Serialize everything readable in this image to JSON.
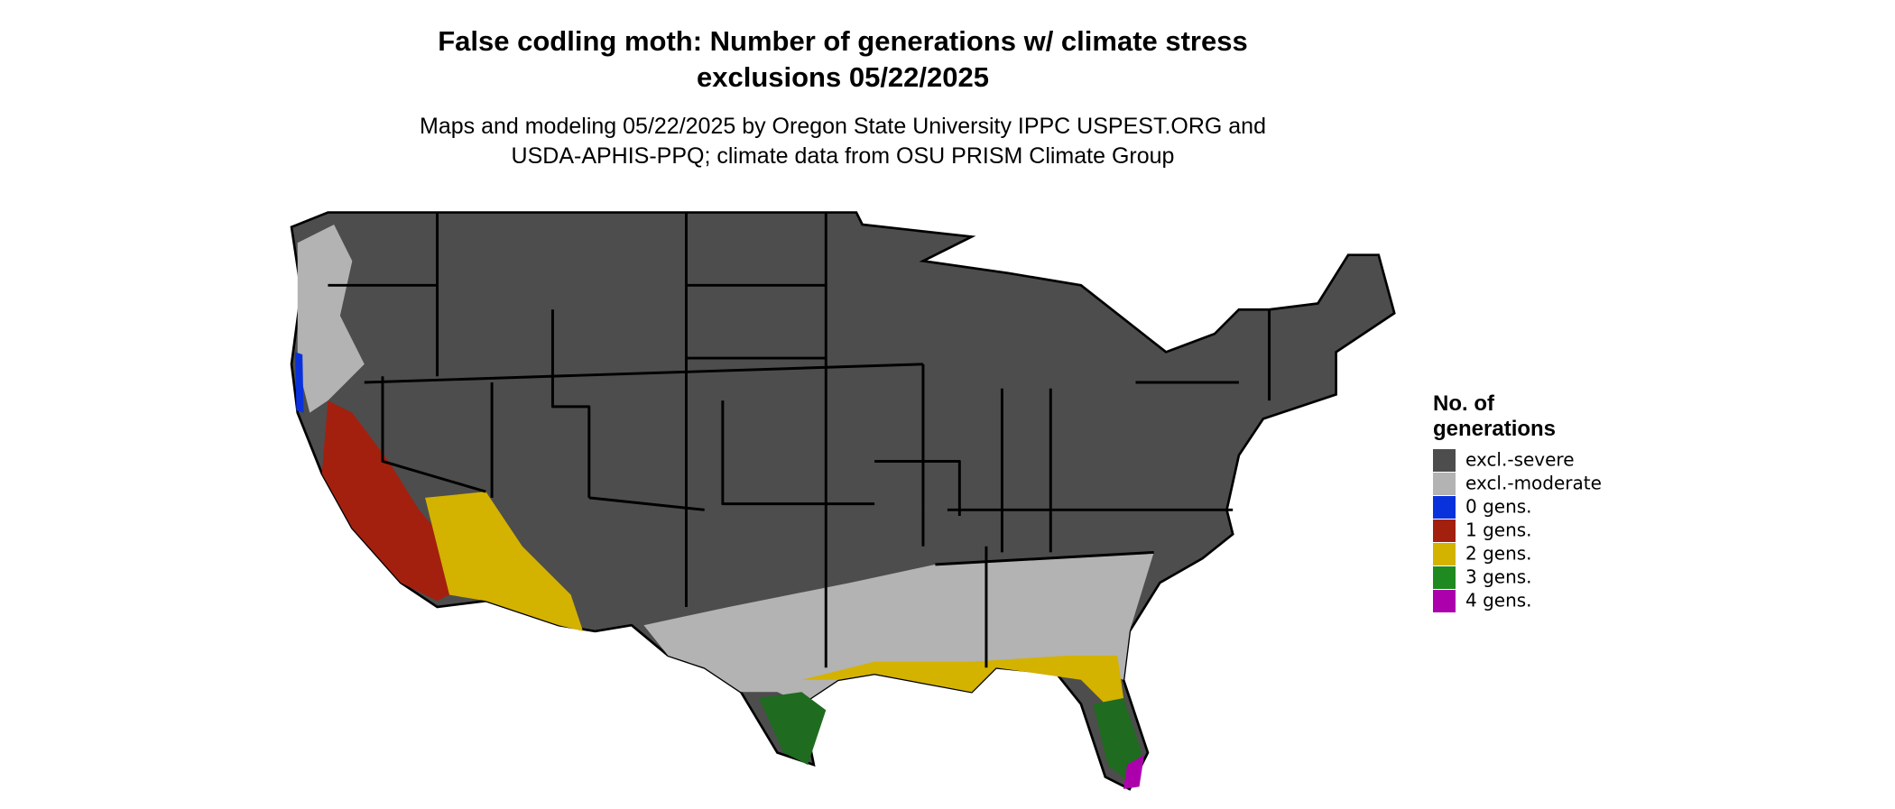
{
  "header": {
    "title": [
      "False codling moth: Number of generations w/ climate stress",
      "exclusions 05/22/2025"
    ],
    "subtitle": [
      "Maps and modeling 05/22/2025 by Oregon State University IPPC USPEST.ORG and",
      "USDA-APHIS-PPQ; climate data from OSU PRISM Climate Group"
    ]
  },
  "legend": {
    "title": [
      "No. of",
      "generations"
    ],
    "items": [
      {
        "label": "excl.-severe",
        "color": "#4d4d4d"
      },
      {
        "label": "excl.-moderate",
        "color": "#b3b3b3"
      },
      {
        "label": "0 gens.",
        "color": "#0a32dc"
      },
      {
        "label": "1 gens.",
        "color": "#a3200f"
      },
      {
        "label": "2 gens.",
        "color": "#d4b200"
      },
      {
        "label": "3 gens.",
        "color": "#1f8a1f"
      },
      {
        "label": "4 gens.",
        "color": "#ad00ad"
      }
    ]
  }
}
